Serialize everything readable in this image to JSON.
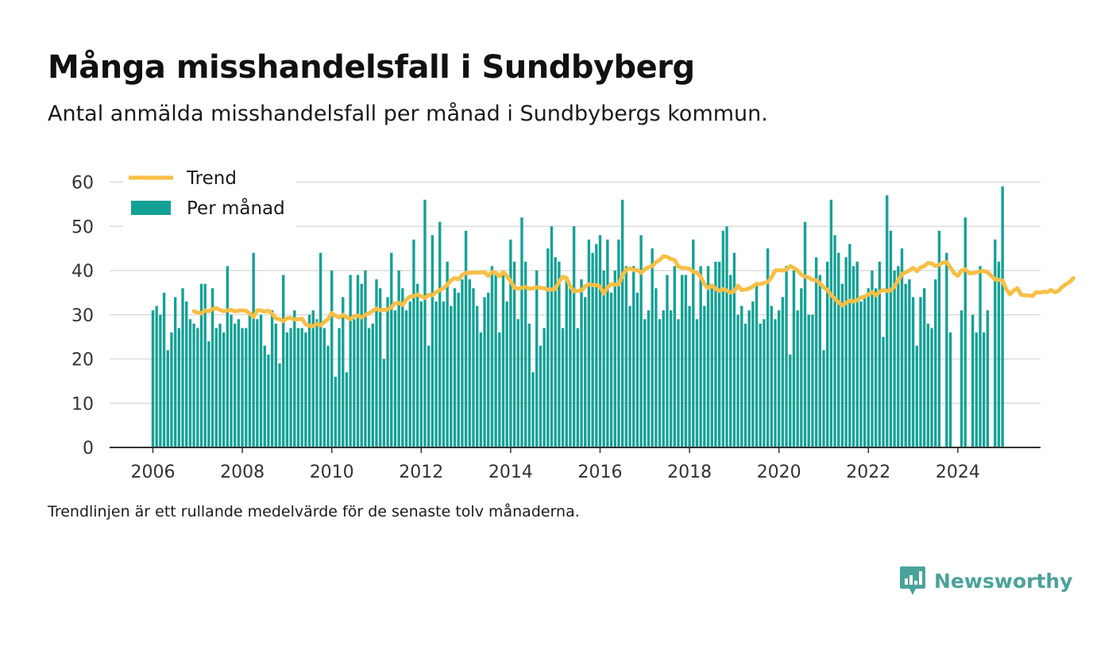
{
  "title": "Många misshandelsfall i Sundbyberg",
  "subtitle": "Antal anmälda misshandelsfall per månad i Sundbybergs kommun.",
  "note": "Trendlinjen är ett rullande medelvärde för de senaste tolv månaderna.",
  "brand": "Newsworthy",
  "colors": {
    "bars": "#14a195",
    "trend": "#f7bf45",
    "grid": "#dcdcdc",
    "axis": "#333333",
    "brand": "#4aa39a"
  },
  "chart_data": {
    "type": "bar",
    "x_start": "2006-01",
    "x_ticks": [
      "2006",
      "2008",
      "2010",
      "2012",
      "2014",
      "2016",
      "2018",
      "2020",
      "2022",
      "2024"
    ],
    "y_ticks": [
      "0",
      "10",
      "20",
      "30",
      "40",
      "50",
      "60"
    ],
    "ylim": [
      0,
      60
    ],
    "grid": true,
    "legend_position": "top-left",
    "series": [
      {
        "name": "Per månad",
        "kind": "bar",
        "values": [
          31,
          32,
          30,
          35,
          22,
          26,
          34,
          27,
          36,
          33,
          29,
          28,
          27,
          37,
          37,
          24,
          36,
          27,
          28,
          26,
          41,
          30,
          28,
          29,
          27,
          27,
          30,
          44,
          29,
          30,
          23,
          21,
          31,
          28,
          19,
          39,
          26,
          27,
          31,
          27,
          27,
          26,
          30,
          31,
          29,
          44,
          27,
          23,
          40,
          16,
          27,
          34,
          17,
          39,
          29,
          39,
          37,
          40,
          27,
          28,
          38,
          36,
          20,
          34,
          44,
          31,
          40,
          36,
          31,
          33,
          47,
          37,
          33,
          56,
          23,
          48,
          33,
          51,
          33,
          42,
          32,
          36,
          35,
          38,
          49,
          38,
          36,
          32,
          26,
          34,
          35,
          41,
          39,
          26,
          40,
          33,
          47,
          42,
          29,
          52,
          42,
          28,
          17,
          40,
          23,
          27,
          45,
          50,
          43,
          42,
          27,
          38,
          36,
          50,
          27,
          38,
          34,
          47,
          44,
          46,
          48,
          40,
          47,
          35,
          40,
          47,
          56,
          41,
          32,
          41,
          35,
          48,
          29,
          31,
          45,
          36,
          29,
          31,
          39,
          31,
          41,
          29,
          39,
          39,
          32,
          47,
          29,
          41,
          32,
          41,
          37,
          42,
          42,
          49,
          50,
          39,
          44,
          30,
          32,
          28,
          31,
          33,
          37,
          28,
          29,
          45,
          32,
          29,
          31,
          34,
          41,
          21,
          40,
          31,
          36,
          51,
          30,
          30,
          43,
          39,
          22,
          42,
          56,
          48,
          44,
          37,
          43,
          46,
          41,
          42,
          33,
          34,
          36,
          40,
          36,
          42,
          25,
          57,
          49,
          40,
          41,
          45,
          37,
          38,
          34,
          23,
          34,
          36,
          28,
          27,
          38,
          49,
          0,
          44,
          26,
          0,
          0,
          31,
          52,
          0,
          30,
          26,
          41,
          26,
          31,
          0,
          47,
          42,
          59
        ]
      },
      {
        "name": "Trend",
        "kind": "line",
        "start_index": 11,
        "values": [
          30.8,
          30.5,
          30.3,
          31.0,
          30.8,
          31.3,
          31.5,
          31.1,
          30.8,
          31.0,
          31.1,
          30.8,
          30.9,
          31.0,
          30.9,
          30.3,
          29.5,
          31.0,
          31.0,
          30.7,
          30.9,
          30.2,
          29.2,
          29.0,
          28.6,
          29.2,
          29.3,
          28.9,
          29.0,
          29.1,
          27.9,
          27.5,
          27.4,
          28.0,
          27.6,
          28.4,
          29.0,
          30.4,
          29.8,
          29.4,
          30.0,
          29.4,
          29.0,
          29.7,
          29.8,
          29.4,
          30.0,
          30.3,
          30.9,
          31.4,
          31.0,
          31.1,
          31.2,
          31.7,
          32.6,
          32.7,
          32.2,
          33.4,
          34.1,
          34.2,
          34.6,
          34.2,
          33.8,
          34.5,
          34.4,
          35.1,
          35.6,
          36.0,
          36.8,
          37.8,
          38.3,
          38.0,
          39.0,
          39.5,
          39.4,
          39.6,
          39.5,
          39.6,
          39.6,
          38.8,
          39.7,
          39.5,
          38.7,
          39.7,
          38.7,
          37.6,
          36.1,
          35.9,
          36.1,
          36.3,
          35.9,
          36.0,
          36.2,
          36.1,
          36.0,
          35.7,
          35.7,
          35.8,
          37.5,
          38.6,
          38.3,
          36.4,
          35.3,
          35.4,
          35.5,
          36.4,
          36.9,
          36.7,
          36.7,
          36.4,
          34.8,
          36.2,
          36.9,
          36.8,
          36.9,
          38.9,
          40.2,
          40.5,
          40.1,
          40.1,
          39.5,
          40.3,
          40.8,
          41.0,
          41.9,
          42.4,
          43.2,
          43.1,
          42.6,
          42.4,
          40.9,
          40.6,
          40.6,
          40.4,
          39.7,
          39.5,
          38.6,
          36.9,
          36.0,
          36.6,
          35.9,
          35.4,
          35.8,
          35.5,
          35.0,
          35.3,
          36.6,
          35.6,
          35.7,
          35.9,
          36.4,
          37.0,
          36.9,
          37.2,
          37.4,
          38.5,
          40.0,
          40.1,
          40.0,
          40.2,
          41.0,
          40.6,
          40.0,
          39.1,
          38.6,
          38.4,
          37.9,
          37.8,
          37.1,
          36.2,
          35.6,
          34.5,
          33.6,
          32.8,
          32.1,
          32.7,
          33.2,
          33.0,
          33.3,
          33.9,
          34.1,
          34.6,
          35.1,
          34.4,
          35.2,
          35.6,
          35.4,
          35.5,
          36.4,
          37.8,
          39.2,
          39.6,
          40.0,
          40.6,
          39.9,
          40.7,
          41.0,
          41.7,
          41.6,
          41.0,
          41.3,
          41.8,
          41.9,
          40.7,
          39.4,
          38.8,
          40.0,
          40.3,
          39.4,
          39.4,
          39.6,
          39.8,
          39.9,
          39.6,
          38.8,
          38.0,
          37.9,
          37.7,
          35.8,
          34.6,
          35.5,
          36.0,
          34.5,
          34.4,
          34.4,
          34.2,
          35.1,
          35.0,
          35.2,
          35.1,
          35.6,
          35.1,
          35.4,
          36.3,
          36.9,
          37.4,
          38.3
        ]
      }
    ]
  }
}
